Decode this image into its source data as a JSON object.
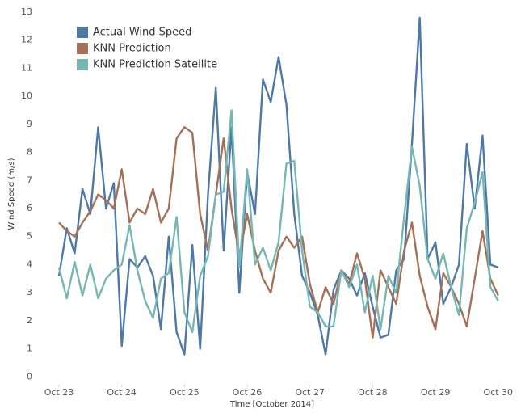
{
  "chart_data": {
    "type": "line",
    "x_label": "Time [October 2014]",
    "y_label": "Wind Speed (m/s)",
    "x": [
      23,
      23.125,
      23.25,
      23.375,
      23.5,
      23.625,
      23.75,
      23.875,
      24,
      24.125,
      24.25,
      24.375,
      24.5,
      24.625,
      24.75,
      24.875,
      25,
      25.125,
      25.25,
      25.375,
      25.5,
      25.625,
      25.75,
      25.875,
      26,
      26.125,
      26.25,
      26.375,
      26.5,
      26.625,
      26.75,
      26.875,
      27,
      27.125,
      27.25,
      27.375,
      27.5,
      27.625,
      27.75,
      27.875,
      28,
      28.125,
      28.25,
      28.375,
      28.5,
      28.625,
      28.75,
      28.875,
      29,
      29.125,
      29.25,
      29.375,
      29.5,
      29.625,
      29.75,
      29.875,
      30
    ],
    "series": [
      {
        "name": "Actual Wind Speed",
        "color": "#4e79a7",
        "values": [
          3.6,
          5.3,
          4.4,
          6.7,
          5.8,
          8.9,
          6.0,
          6.9,
          1.1,
          4.2,
          3.9,
          4.3,
          3.6,
          1.7,
          5.0,
          1.6,
          0.8,
          4.7,
          1.0,
          6.5,
          10.3,
          4.5,
          8.9,
          3.0,
          7.3,
          5.8,
          10.6,
          9.8,
          11.4,
          9.7,
          5.8,
          3.6,
          3.0,
          2.2,
          0.8,
          3.1,
          3.8,
          3.5,
          2.9,
          3.7,
          2.5,
          1.4,
          1.5,
          3.8,
          4.2,
          8.3,
          12.8,
          4.2,
          4.8,
          2.6,
          3.2,
          4.0,
          8.3,
          6.0,
          8.6,
          4.0,
          3.9
        ]
      },
      {
        "name": "KNN Prediction",
        "color": "#a47158",
        "values": [
          5.5,
          5.2,
          5.0,
          5.5,
          5.9,
          6.5,
          6.3,
          6.0,
          7.4,
          5.5,
          6.0,
          5.8,
          6.7,
          5.5,
          6.0,
          8.5,
          8.9,
          8.7,
          5.8,
          4.5,
          6.5,
          8.5,
          6.0,
          4.3,
          5.8,
          4.5,
          3.5,
          3.0,
          4.5,
          5.0,
          4.6,
          5.0,
          3.3,
          2.3,
          3.2,
          2.6,
          3.8,
          3.3,
          4.4,
          3.5,
          1.4,
          3.8,
          3.2,
          2.6,
          4.5,
          5.5,
          3.6,
          2.5,
          1.7,
          3.7,
          3.2,
          2.6,
          1.8,
          3.5,
          5.2,
          3.5,
          2.9
        ]
      },
      {
        "name": "KNN Prediction Satellite",
        "color": "#76b7b2",
        "values": [
          3.9,
          2.8,
          4.1,
          2.9,
          4.0,
          2.8,
          3.5,
          3.8,
          4.0,
          5.4,
          3.8,
          2.7,
          2.1,
          3.5,
          3.7,
          5.7,
          2.3,
          1.6,
          3.6,
          4.3,
          6.5,
          6.6,
          9.5,
          3.9,
          7.4,
          4.0,
          4.6,
          3.8,
          4.8,
          7.6,
          7.7,
          4.5,
          2.5,
          2.3,
          1.8,
          1.8,
          3.8,
          3.2,
          4.0,
          2.3,
          3.6,
          1.7,
          3.6,
          3.0,
          5.7,
          8.2,
          6.8,
          4.2,
          3.5,
          4.4,
          3.2,
          2.2,
          5.3,
          6.2,
          7.3,
          3.2,
          2.7
        ]
      }
    ],
    "xlim": [
      22.64,
      30.17
    ],
    "xticks": [
      {
        "value": 23,
        "label": "Oct 23"
      },
      {
        "value": 24,
        "label": "Oct 24"
      },
      {
        "value": 25,
        "label": "Oct 25"
      },
      {
        "value": 26,
        "label": "Oct 26"
      },
      {
        "value": 27,
        "label": "Oct 27"
      },
      {
        "value": 28,
        "label": "Oct 28"
      },
      {
        "value": 29,
        "label": "Oct 29"
      },
      {
        "value": 30,
        "label": "Oct 30"
      }
    ],
    "ylim": [
      -0.25,
      13.2
    ],
    "yticks": [
      0,
      1,
      2,
      3,
      4,
      5,
      6,
      7,
      8,
      9,
      10,
      11,
      12,
      13
    ],
    "grid": false,
    "legend": "top-left"
  }
}
